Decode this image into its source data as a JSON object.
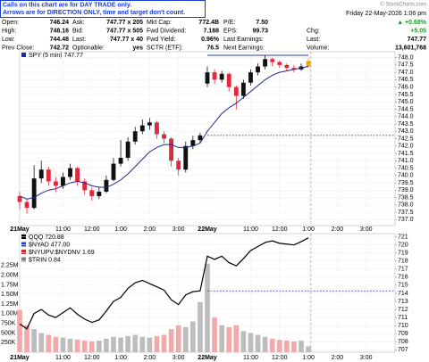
{
  "notice": [
    "Calls on this chart are for DAY TRADE only.",
    "Arrows are for DIRECTION ONLY, time and target don't count."
  ],
  "watermark": "© StockCharts.com",
  "quote": {
    "rows": [
      [
        {
          "label": "Open:",
          "value": "746.24"
        },
        {
          "label": "Ask:",
          "value": "747.77 x 205"
        },
        {
          "label": "Mkt Cap:",
          "value": "772.4B"
        },
        {
          "label": "P/E:",
          "value": "7.50"
        }
      ],
      [
        {
          "label": "High:",
          "value": "748.16"
        },
        {
          "label": "Bid:",
          "value": "747.77 x 505"
        },
        {
          "label": "Fwd Dividend:",
          "value": "7.188"
        },
        {
          "label": "EPS:",
          "value": "99.73"
        }
      ],
      [
        {
          "label": "Low:",
          "value": "744.48"
        },
        {
          "label": "Last:",
          "value": "747.77 x 40"
        },
        {
          "label": "Fwd Yield:",
          "value": "0.96%"
        },
        {
          "label": "Last Earnings:"
        }
      ],
      [
        {
          "label": "Prev Close:",
          "value": "742.72"
        },
        {
          "label": "Optionable:",
          "value": "yes"
        },
        {
          "label": "SCTR (ETF):",
          "value": "76.5"
        },
        {
          "label": "Next Earnings:"
        }
      ]
    ],
    "date": "Friday 22-May-2026 1:06 pm",
    "summary": [
      {
        "value": "▲ +0.68%",
        "color": "#1a9a2a"
      },
      {
        "label": "Chg:",
        "value": "+5.05",
        "color": "#1a9a2a"
      },
      {
        "label": "Last:",
        "value": "747.77",
        "color": "#000000"
      },
      {
        "label": "Volume:",
        "value": "13,601,768",
        "color": "#000000"
      }
    ]
  },
  "chart_data": [
    {
      "type": "candlestick",
      "legend": "SPY (5 min) 747.77",
      "x": [
        0,
        3,
        6,
        9,
        12,
        15,
        18,
        21,
        24,
        27,
        30,
        33,
        36,
        39,
        42,
        45,
        48,
        51,
        54,
        57,
        60,
        63,
        66,
        69,
        72,
        75,
        78,
        81,
        84,
        87,
        90,
        93,
        96,
        99,
        102,
        105,
        108,
        111,
        114,
        117,
        120
      ],
      "open": [
        738.6,
        738.2,
        737.8,
        739.8,
        740.4,
        739.6,
        739.3,
        739.9,
        740.5,
        739.6,
        739.0,
        738.6,
        738.9,
        739.7,
        740.8,
        741.2,
        742.3,
        743.0,
        743.4,
        743.6,
        742.8,
        742.5,
        741.0,
        740.4,
        742.0,
        742.4,
        746.24,
        747.0,
        746.5,
        746.9,
        746.0,
        745.4,
        746.3,
        747.0,
        747.4,
        747.9,
        747.7,
        747.5,
        747.3,
        747.2,
        747.4
      ],
      "high": [
        738.9,
        738.4,
        740.7,
        741.0,
        740.6,
        739.9,
        740.2,
        740.8,
        740.6,
        739.8,
        739.2,
        739.2,
        740.0,
        741.2,
        742.4,
        742.6,
        743.3,
        743.8,
        743.9,
        743.7,
        743.0,
        742.6,
        741.2,
        742.3,
        742.7,
        742.9,
        747.4,
        747.2,
        747.1,
        747.0,
        746.1,
        746.5,
        747.2,
        747.6,
        748.16,
        748.0,
        747.8,
        747.6,
        747.5,
        747.6,
        748.0
      ],
      "low": [
        737.7,
        737.4,
        737.7,
        739.5,
        739.3,
        738.9,
        739.1,
        739.7,
        739.3,
        738.7,
        738.3,
        738.4,
        738.8,
        739.6,
        740.6,
        741.0,
        742.1,
        742.8,
        743.1,
        742.5,
        742.2,
        740.6,
        740.0,
        740.2,
        741.8,
        742.2,
        746.0,
        746.2,
        746.3,
        745.7,
        744.48,
        745.2,
        746.1,
        746.8,
        747.2,
        747.4,
        747.3,
        747.1,
        747.0,
        747.1,
        747.3
      ],
      "close": [
        738.2,
        737.8,
        739.8,
        740.4,
        739.6,
        739.3,
        739.9,
        740.5,
        739.6,
        739.0,
        738.6,
        738.9,
        739.7,
        740.8,
        741.2,
        742.3,
        743.0,
        743.4,
        743.6,
        742.8,
        742.5,
        741.0,
        740.4,
        742.0,
        742.4,
        742.72,
        747.0,
        746.5,
        746.9,
        746.0,
        745.4,
        746.3,
        747.0,
        747.4,
        747.9,
        747.7,
        747.5,
        747.3,
        747.2,
        747.4,
        747.77
      ],
      "ma": [
        738.6,
        738.4,
        738.5,
        738.8,
        739.0,
        739.1,
        739.3,
        739.5,
        739.6,
        739.5,
        739.3,
        739.2,
        739.2,
        739.4,
        739.7,
        740.1,
        740.6,
        741.1,
        741.6,
        741.9,
        742.1,
        742.1,
        741.9,
        741.9,
        742.0,
        742.2,
        743.0,
        743.6,
        744.2,
        744.6,
        744.9,
        745.3,
        745.7,
        746.1,
        746.5,
        746.8,
        747.0,
        747.1,
        747.2,
        747.3,
        747.4
      ],
      "up_color": "#111111",
      "down_color": "#e0283c",
      "last_color": "#f0a800",
      "ma_color": "#1f2a8c",
      "reference_lines": [
        {
          "value": 742.72,
          "from": 78,
          "to": 156,
          "style": "dashed",
          "color": "#2a3ad0"
        },
        {
          "value": 748.16,
          "from": 78,
          "to": 120,
          "style": "solid",
          "color": "#2a3ad0"
        }
      ],
      "now": 121,
      "xlim": [
        0,
        156
      ],
      "xticks": [
        {
          "value": 0,
          "label": "21May"
        },
        {
          "value": 18,
          "label": "11:00"
        },
        {
          "value": 30,
          "label": "12:00"
        },
        {
          "value": 42,
          "label": "1:00"
        },
        {
          "value": 54,
          "label": "2:00"
        },
        {
          "value": 66,
          "label": "3:00"
        },
        {
          "value": 78,
          "label": "22May"
        },
        {
          "value": 96,
          "label": "11:00"
        },
        {
          "value": 108,
          "label": "12:00"
        },
        {
          "value": 120,
          "label": "1:00"
        },
        {
          "value": 132,
          "label": "2:00"
        },
        {
          "value": 144,
          "label": "3:00"
        }
      ],
      "ylim": [
        736.6,
        748.4
      ],
      "yticks": [
        {
          "value": 737,
          "label": "737.0"
        },
        737.5,
        {
          "value": 738,
          "label": "738.0"
        },
        738.5,
        {
          "value": 739,
          "label": "739.0"
        },
        739.5,
        {
          "value": 740,
          "label": "740.0"
        },
        740.5,
        {
          "value": 741,
          "label": "741.0"
        },
        741.5,
        {
          "value": 742,
          "label": "742.0"
        },
        742.5,
        {
          "value": 743,
          "label": "743.0"
        },
        743.5,
        {
          "value": 744,
          "label": "744.0"
        },
        744.5,
        {
          "value": 745,
          "label": "745.0"
        },
        745.5,
        {
          "value": 746,
          "label": "746.0"
        },
        746.5,
        {
          "value": 747,
          "label": "747.0"
        },
        747.5,
        {
          "value": 748,
          "label": "748.0"
        }
      ],
      "grid": true
    },
    {
      "type": "line",
      "x": [
        0,
        3,
        6,
        9,
        12,
        15,
        18,
        21,
        24,
        27,
        30,
        33,
        36,
        39,
        42,
        45,
        48,
        51,
        54,
        57,
        60,
        63,
        66,
        69,
        72,
        75,
        78,
        81,
        84,
        87,
        90,
        93,
        96,
        99,
        102,
        105,
        108,
        111,
        114,
        117,
        120
      ],
      "series": [
        {
          "name": "QQQ 720.88",
          "color": "#000000",
          "values": [
            710.2,
            709.6,
            711.5,
            712.0,
            711.3,
            711.0,
            711.6,
            712.2,
            711.4,
            710.8,
            710.4,
            710.7,
            711.8,
            713.0,
            713.5,
            714.6,
            715.3,
            715.6,
            715.2,
            714.8,
            714.4,
            713.2,
            712.6,
            713.8,
            714.2,
            714.3,
            718.6,
            718.2,
            718.6,
            717.8,
            717.4,
            718.3,
            719.3,
            719.8,
            720.3,
            720.5,
            720.2,
            720.1,
            720.0,
            720.4,
            720.88
          ]
        }
      ],
      "indicators": [
        "$NYAD 477.00",
        "$NYUPV:$NYDNV 1.69",
        "$TRIN 0.84"
      ],
      "volume": [
        1100000,
        700000,
        600000,
        500000,
        450000,
        400000,
        380000,
        350000,
        330000,
        300000,
        280000,
        300000,
        350000,
        400000,
        380000,
        420000,
        450000,
        400000,
        380000,
        420000,
        450000,
        600000,
        700000,
        650000,
        800000,
        1300000,
        2300000,
        900000,
        700000,
        650000,
        700000,
        550000,
        500000,
        450000,
        400000,
        350000,
        320000,
        300000,
        280000,
        300000,
        150000
      ],
      "volume_up_color": "#bdbdbd",
      "volume_down_color": "#f2a9a9",
      "reference_lines": [
        {
          "value": 714.3,
          "from": 78,
          "to": 156,
          "style": "dashed",
          "color": "#2a3ad0"
        }
      ],
      "now": 121,
      "xlim": [
        0,
        156
      ],
      "xticks": [
        {
          "value": 0,
          "label": "21May"
        },
        {
          "value": 18,
          "label": "11:00"
        },
        {
          "value": 30,
          "label": "12:00"
        },
        {
          "value": 42,
          "label": "1:00"
        },
        {
          "value": 54,
          "label": "2:00"
        },
        {
          "value": 66,
          "label": "3:00"
        },
        {
          "value": 78,
          "label": "22May"
        },
        {
          "value": 96,
          "label": "11:00"
        },
        {
          "value": 108,
          "label": "12:00"
        },
        {
          "value": 120,
          "label": "1:00"
        },
        {
          "value": 132,
          "label": "2:00"
        },
        {
          "value": 144,
          "label": "3:00"
        }
      ],
      "ylim": [
        706.7,
        721.4
      ],
      "yticks": [
        707,
        708,
        709,
        710,
        711,
        712,
        713,
        714,
        715,
        716,
        717,
        718,
        719,
        720,
        721
      ],
      "y2lim": [
        0,
        3080000
      ],
      "y2ticks": [
        {
          "value": 250000,
          "label": "250K"
        },
        {
          "value": 500000,
          "label": "500K"
        },
        {
          "value": 750000,
          "label": "750K"
        },
        {
          "value": 1000000,
          "label": "1.00M"
        },
        {
          "value": 1250000,
          "label": "1.25M"
        },
        {
          "value": 1500000,
          "label": "1.50M"
        },
        {
          "value": 1750000,
          "label": "1.75M"
        },
        {
          "value": 2000000,
          "label": "2.00M"
        },
        {
          "value": 2250000,
          "label": "2.25M"
        }
      ],
      "grid": true
    }
  ]
}
